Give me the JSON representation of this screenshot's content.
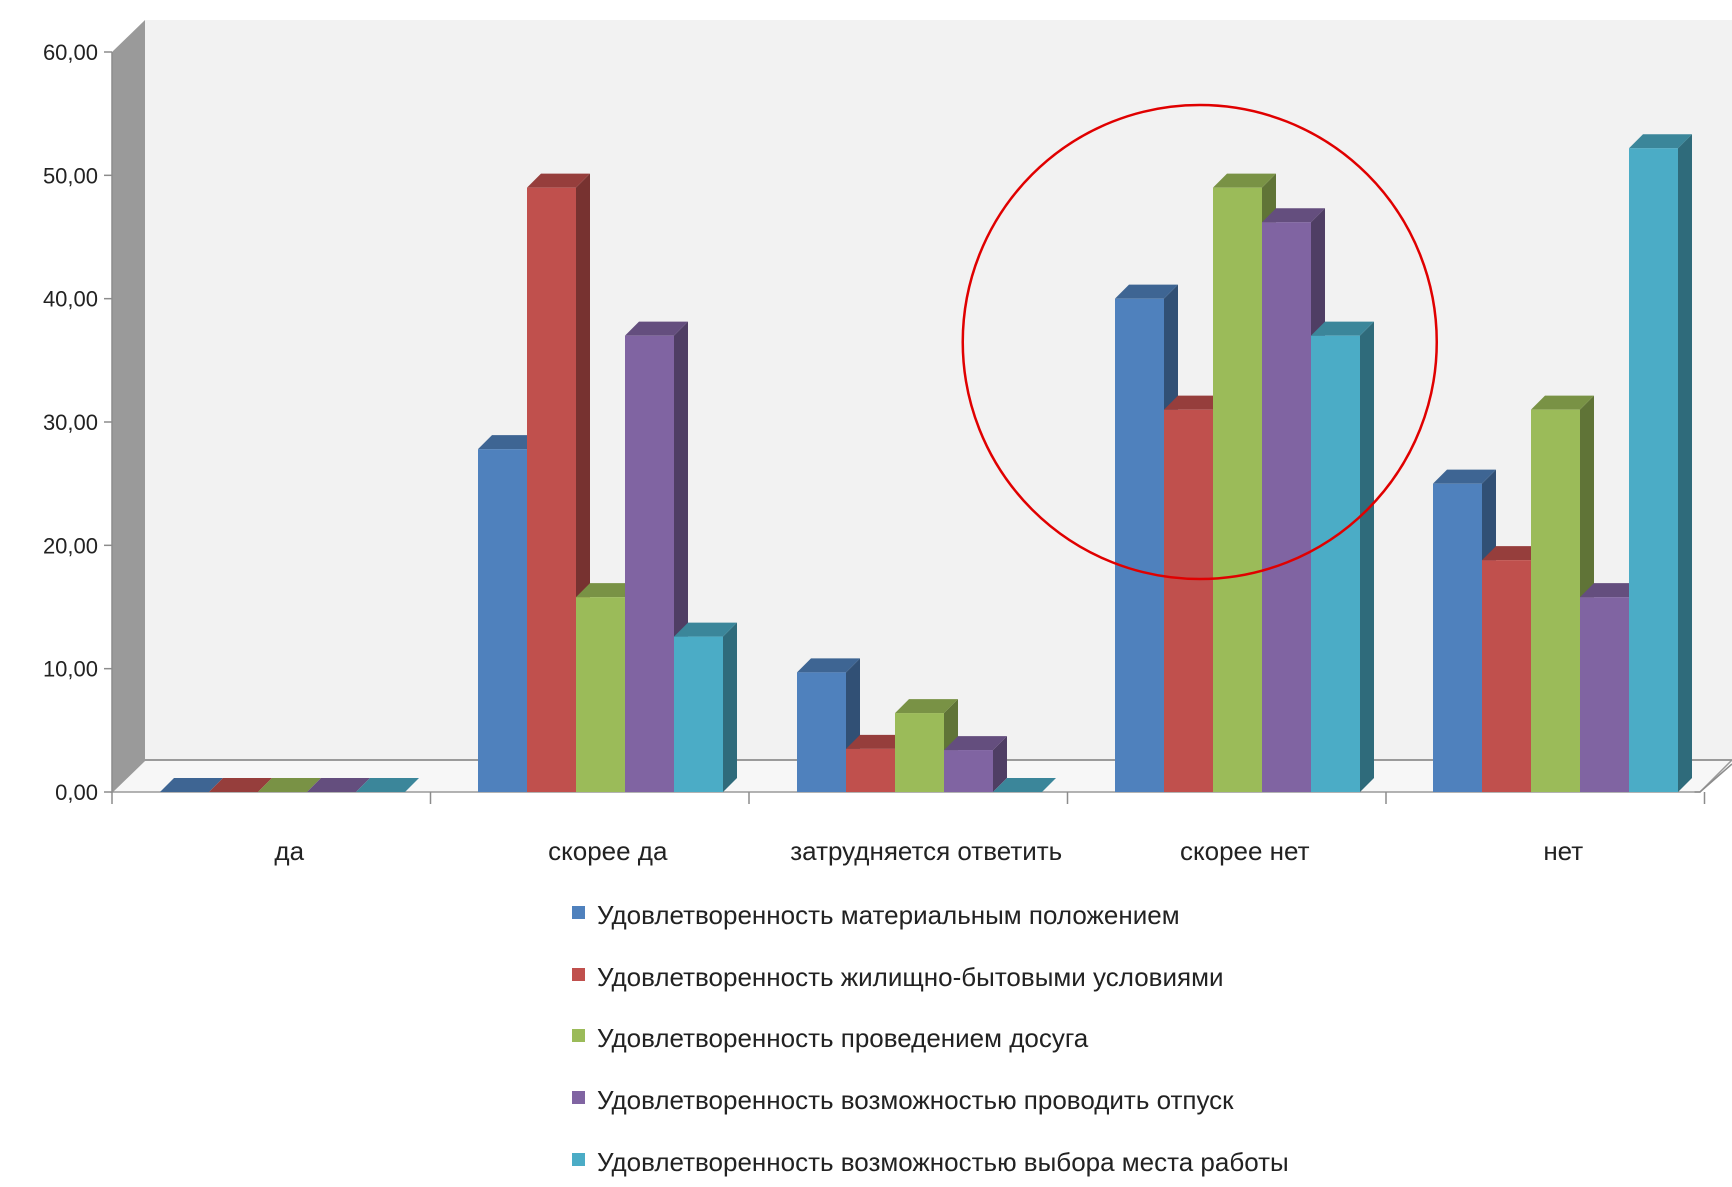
{
  "chart_data": {
    "type": "bar",
    "three_d": true,
    "categories": [
      "да",
      "скорее да",
      "затрудняется ответить",
      "скорее нет",
      "нет"
    ],
    "series": [
      {
        "name": "Удовлетворенность материальным положением",
        "color": "#4F81BD",
        "values": [
          0,
          27.8,
          9.7,
          40,
          25
        ]
      },
      {
        "name": " Удовлетворенность жилищно-бытовыми условиями",
        "color": "#C0504D",
        "values": [
          0,
          49,
          3.5,
          31,
          18.8
        ]
      },
      {
        "name": "Удовлетворенность проведением досуга",
        "color": "#9BBB59",
        "values": [
          0,
          15.8,
          6.4,
          49,
          31
        ]
      },
      {
        "name": "Удовлетворенность возможностью проводить отпуск",
        "color": "#8064A2",
        "values": [
          0,
          37,
          3.4,
          46.2,
          15.8
        ]
      },
      {
        "name": "Удовлетворенность возможностью выбора места работы",
        "color": "#4BACC6",
        "values": [
          0,
          12.6,
          0,
          37,
          52.2
        ]
      }
    ],
    "yticks": [
      "0,00",
      "10,00",
      "20,00",
      "30,00",
      "40,00",
      "50,00",
      "60,00"
    ],
    "ylim": [
      0,
      60
    ],
    "grid": false,
    "legend_position": "bottom",
    "annotation": {
      "shape": "circle",
      "color": "#E00000",
      "around_category": "скорее нет"
    }
  }
}
